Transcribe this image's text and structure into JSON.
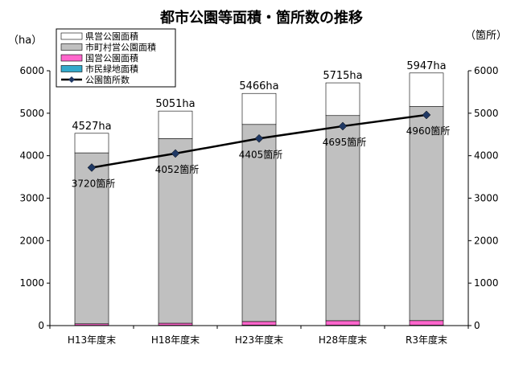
{
  "chart_data": {
    "type": "bar",
    "title": "都市公園等面積・箇所数の推移",
    "y_left_unit": "（ha）",
    "y_right_unit": "（箇所）",
    "ylim": [
      0,
      6000
    ],
    "y_ticks": [
      "0",
      "1000",
      "2000",
      "3000",
      "4000",
      "5000",
      "6000"
    ],
    "categories": [
      "H13年度末",
      "H18年度末",
      "H23年度末",
      "H28年度末",
      "R3年度末"
    ],
    "series": [
      {
        "name": "県営公園面積",
        "type": "stacked-bar",
        "color": "#ffffff",
        "values": [
          460,
          650,
          730,
          770,
          790
        ]
      },
      {
        "name": "市町村営公園面積",
        "type": "stacked-bar",
        "color": "#c0c0c0",
        "values": [
          4025,
          4345,
          4640,
          4830,
          5040
        ]
      },
      {
        "name": "国営公園面積",
        "type": "stacked-bar",
        "color": "#ff66cc",
        "values": [
          35,
          48,
          85,
          105,
          107
        ]
      },
      {
        "name": "市民緑地面積",
        "type": "stacked-bar",
        "color": "#33aacc",
        "values": [
          7,
          8,
          11,
          10,
          10
        ]
      },
      {
        "name": "公園箇所数",
        "type": "line",
        "color": "#000000",
        "marker_color": "#1f3864",
        "values": [
          3720,
          4052,
          4405,
          4695,
          4960
        ]
      }
    ],
    "total_labels": [
      "4527ha",
      "5051ha",
      "5466ha",
      "5715ha",
      "5947ha"
    ],
    "count_labels": [
      "3720箇所",
      "4052箇所",
      "4405箇所",
      "4695箇所",
      "4960箇所"
    ],
    "legend_position": "top-left",
    "grid": false
  }
}
